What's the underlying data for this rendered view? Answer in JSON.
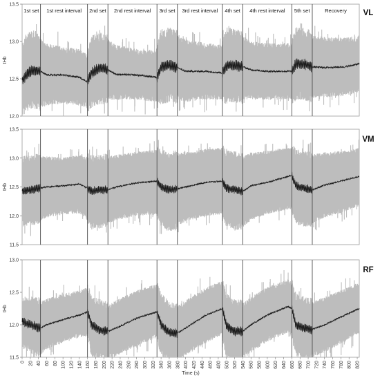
{
  "chart_data": [
    {
      "type": "area",
      "muscle": "VL",
      "ylabel": "tHb",
      "ylim": [
        12.0,
        13.5
      ],
      "yticks": [
        "12.0",
        "12.5",
        "13.0",
        "13.5"
      ],
      "xlim": [
        0,
        825
      ],
      "phase_boundaries": [
        45,
        160,
        210,
        330,
        380,
        490,
        540,
        660,
        710
      ],
      "phases": [
        "1st set",
        "1st rest interval",
        "2nd set",
        "2nd rest interval",
        "3rd set",
        "3rd rest interval",
        "4th set",
        "4th rest interval",
        "5th set",
        "Recovery"
      ],
      "mean": {
        "x": [
          0,
          10,
          25,
          45,
          60,
          100,
          140,
          160,
          170,
          190,
          210,
          230,
          280,
          330,
          340,
          360,
          380,
          400,
          450,
          490,
          500,
          520,
          540,
          560,
          600,
          660,
          670,
          690,
          710,
          740,
          790,
          825
        ],
        "y": [
          12.47,
          12.55,
          12.62,
          12.6,
          12.55,
          12.55,
          12.52,
          12.46,
          12.58,
          12.65,
          12.62,
          12.56,
          12.55,
          12.52,
          12.66,
          12.68,
          12.65,
          12.6,
          12.6,
          12.58,
          12.68,
          12.68,
          12.66,
          12.62,
          12.6,
          12.6,
          12.7,
          12.7,
          12.66,
          12.65,
          12.66,
          12.7
        ]
      },
      "band": {
        "x": [
          0,
          10,
          25,
          45,
          60,
          100,
          140,
          160,
          170,
          190,
          210,
          230,
          280,
          330,
          340,
          360,
          380,
          400,
          450,
          490,
          500,
          520,
          540,
          560,
          600,
          660,
          670,
          690,
          710,
          740,
          790,
          825
        ],
        "lower": [
          12.12,
          12.2,
          12.25,
          12.2,
          12.22,
          12.25,
          12.22,
          12.18,
          12.25,
          12.3,
          12.3,
          12.3,
          12.3,
          12.27,
          12.3,
          12.32,
          12.3,
          12.27,
          12.3,
          12.3,
          12.3,
          12.32,
          12.3,
          12.3,
          12.3,
          12.3,
          12.35,
          12.35,
          12.32,
          12.33,
          12.35,
          12.4
        ],
        "upper": [
          12.85,
          12.95,
          13.02,
          12.97,
          12.9,
          12.85,
          12.82,
          12.75,
          12.95,
          12.98,
          12.95,
          12.88,
          12.82,
          12.8,
          13.03,
          13.05,
          13.02,
          12.95,
          12.9,
          12.88,
          13.05,
          13.03,
          13.0,
          12.92,
          12.9,
          12.9,
          13.05,
          13.05,
          13.0,
          12.98,
          12.97,
          13.0
        ]
      }
    },
    {
      "type": "area",
      "muscle": "VM",
      "ylabel": "tHb",
      "ylim": [
        11.5,
        13.5
      ],
      "yticks": [
        "11.5",
        "12.0",
        "12.5",
        "13.0",
        "13.5"
      ],
      "xlim": [
        0,
        825
      ],
      "phase_boundaries": [
        45,
        160,
        210,
        330,
        380,
        490,
        540,
        660,
        710
      ],
      "mean": {
        "x": [
          0,
          20,
          45,
          60,
          100,
          140,
          160,
          170,
          190,
          210,
          230,
          280,
          330,
          340,
          360,
          380,
          400,
          450,
          490,
          500,
          520,
          540,
          560,
          600,
          660,
          670,
          690,
          710,
          740,
          790,
          825
        ],
        "y": [
          12.42,
          12.45,
          12.48,
          12.5,
          12.52,
          12.55,
          12.48,
          12.43,
          12.45,
          12.45,
          12.5,
          12.57,
          12.6,
          12.5,
          12.45,
          12.47,
          12.5,
          12.58,
          12.6,
          12.48,
          12.45,
          12.42,
          12.52,
          12.58,
          12.7,
          12.52,
          12.48,
          12.45,
          12.53,
          12.62,
          12.68
        ]
      },
      "band": {
        "x": [
          0,
          20,
          45,
          60,
          100,
          140,
          160,
          170,
          190,
          210,
          230,
          280,
          330,
          340,
          360,
          380,
          400,
          450,
          490,
          500,
          520,
          540,
          560,
          600,
          660,
          670,
          690,
          710,
          740,
          790,
          825
        ],
        "lower": [
          11.95,
          11.97,
          12.0,
          12.05,
          12.1,
          12.12,
          12.0,
          11.9,
          11.92,
          11.95,
          12.0,
          12.08,
          12.1,
          11.95,
          11.85,
          11.9,
          11.98,
          12.08,
          12.1,
          11.95,
          11.9,
          11.88,
          12.0,
          12.1,
          12.2,
          12.0,
          11.95,
          11.95,
          12.05,
          12.15,
          12.25
        ],
        "upper": [
          12.9,
          12.92,
          12.95,
          12.95,
          12.93,
          12.97,
          12.95,
          12.92,
          12.92,
          12.95,
          12.98,
          13.03,
          13.07,
          13.02,
          12.98,
          13.0,
          13.03,
          13.08,
          13.1,
          13.0,
          12.98,
          12.95,
          13.02,
          13.05,
          13.12,
          13.02,
          12.98,
          12.98,
          13.02,
          13.05,
          13.1
        ]
      }
    },
    {
      "type": "area",
      "muscle": "RF",
      "ylabel": "tHb",
      "ylim": [
        11.5,
        13.0
      ],
      "yticks": [
        "11.5",
        "12.0",
        "12.5",
        "13.0"
      ],
      "xlim": [
        0,
        825
      ],
      "phase_boundaries": [
        45,
        160,
        210,
        330,
        380,
        490,
        540,
        660,
        710
      ],
      "xlabel": "Time (s)",
      "xticks": [
        "0",
        "20",
        "40",
        "60",
        "80",
        "100",
        "120",
        "140",
        "160",
        "180",
        "200",
        "220",
        "240",
        "260",
        "280",
        "300",
        "320",
        "340",
        "360",
        "380",
        "400",
        "420",
        "440",
        "460",
        "480",
        "500",
        "520",
        "540",
        "560",
        "580",
        "600",
        "620",
        "640",
        "660",
        "680",
        "700",
        "720",
        "740",
        "760",
        "780",
        "800",
        "820"
      ],
      "mean": {
        "x": [
          0,
          20,
          45,
          60,
          100,
          140,
          160,
          170,
          190,
          210,
          230,
          280,
          330,
          340,
          360,
          380,
          400,
          450,
          490,
          500,
          520,
          540,
          560,
          600,
          650,
          660,
          670,
          690,
          710,
          740,
          790,
          825
        ],
        "y": [
          12.05,
          12.0,
          11.95,
          12.0,
          12.08,
          12.15,
          12.2,
          12.0,
          11.92,
          11.9,
          11.95,
          12.1,
          12.2,
          12.0,
          11.88,
          11.87,
          11.95,
          12.15,
          12.25,
          11.98,
          11.9,
          11.9,
          12.0,
          12.15,
          12.28,
          12.25,
          12.0,
          11.95,
          11.93,
          12.0,
          12.15,
          12.25
        ]
      },
      "band": {
        "x": [
          0,
          20,
          45,
          60,
          100,
          140,
          160,
          170,
          190,
          210,
          230,
          280,
          330,
          340,
          360,
          380,
          400,
          450,
          490,
          500,
          520,
          540,
          560,
          600,
          650,
          660,
          670,
          690,
          710,
          740,
          790,
          825
        ],
        "lower": [
          11.78,
          11.7,
          11.62,
          11.7,
          11.8,
          11.88,
          11.9,
          11.65,
          11.58,
          11.55,
          11.6,
          11.75,
          11.88,
          11.65,
          11.53,
          11.52,
          11.6,
          11.8,
          11.92,
          11.62,
          11.55,
          11.55,
          11.65,
          11.82,
          11.95,
          11.92,
          11.65,
          11.6,
          11.58,
          11.65,
          11.82,
          11.95
        ],
        "upper": [
          12.3,
          12.3,
          12.28,
          12.32,
          12.4,
          12.45,
          12.5,
          12.32,
          12.25,
          12.22,
          12.3,
          12.45,
          12.55,
          12.35,
          12.22,
          12.2,
          12.3,
          12.5,
          12.6,
          12.35,
          12.25,
          12.25,
          12.35,
          12.5,
          12.62,
          12.58,
          12.35,
          12.3,
          12.28,
          12.35,
          12.48,
          12.58
        ]
      }
    }
  ]
}
